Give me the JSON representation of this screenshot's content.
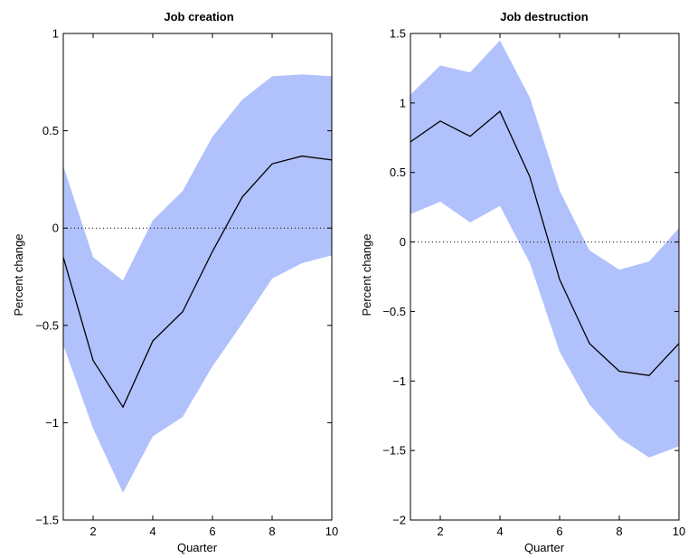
{
  "chart_data": [
    {
      "type": "area",
      "title": "Job creation",
      "xlabel": "Quarter",
      "ylabel": "Percent change",
      "x": [
        1,
        2,
        3,
        4,
        5,
        6,
        7,
        8,
        9,
        10
      ],
      "xlim": [
        1,
        10
      ],
      "ylim": [
        -1.5,
        1
      ],
      "xticks": [
        2,
        4,
        6,
        8,
        10
      ],
      "yticks": [
        -1.5,
        -1,
        -0.5,
        0,
        0.5,
        1
      ],
      "xtick_labels": [
        "2",
        "4",
        "6",
        "8",
        "10"
      ],
      "ytick_labels": [
        "−1.5",
        "−1",
        "−0.5",
        "0",
        "0.5",
        "1"
      ],
      "series": [
        {
          "role": "estimate",
          "values": [
            -0.15,
            -0.68,
            -0.92,
            -0.58,
            -0.43,
            -0.12,
            0.16,
            0.33,
            0.37,
            0.35
          ]
        },
        {
          "role": "upper",
          "values": [
            0.32,
            -0.15,
            -0.27,
            0.04,
            0.19,
            0.47,
            0.66,
            0.78,
            0.79,
            0.78
          ]
        },
        {
          "role": "lower",
          "values": [
            -0.6,
            -1.03,
            -1.36,
            -1.07,
            -0.97,
            -0.71,
            -0.49,
            -0.26,
            -0.18,
            -0.14
          ]
        }
      ],
      "reference_line": 0,
      "band_color": "#b1c1fb",
      "line_color": "#000000",
      "grid": false
    },
    {
      "type": "area",
      "title": "Job destruction",
      "xlabel": "Quarter",
      "ylabel": "Percent change",
      "x": [
        1,
        2,
        3,
        4,
        5,
        6,
        7,
        8,
        9,
        10
      ],
      "xlim": [
        1,
        10
      ],
      "ylim": [
        -2,
        1.5
      ],
      "xticks": [
        2,
        4,
        6,
        8,
        10
      ],
      "yticks": [
        -2,
        -1.5,
        -1,
        -0.5,
        0,
        0.5,
        1,
        1.5
      ],
      "xtick_labels": [
        "2",
        "4",
        "6",
        "8",
        "10"
      ],
      "ytick_labels": [
        "−2",
        "−1.5",
        "−1",
        "−0.5",
        "0",
        "0.5",
        "1",
        "1.5"
      ],
      "series": [
        {
          "role": "estimate",
          "values": [
            0.72,
            0.87,
            0.76,
            0.94,
            0.47,
            -0.27,
            -0.73,
            -0.93,
            -0.96,
            -0.73
          ]
        },
        {
          "role": "upper",
          "values": [
            1.06,
            1.27,
            1.22,
            1.45,
            1.04,
            0.37,
            -0.06,
            -0.2,
            -0.14,
            0.1
          ]
        },
        {
          "role": "lower",
          "values": [
            0.2,
            0.29,
            0.14,
            0.26,
            -0.15,
            -0.79,
            -1.17,
            -1.41,
            -1.55,
            -1.47
          ]
        }
      ],
      "reference_line": 0,
      "band_color": "#b1c1fb",
      "line_color": "#000000",
      "grid": false
    }
  ]
}
